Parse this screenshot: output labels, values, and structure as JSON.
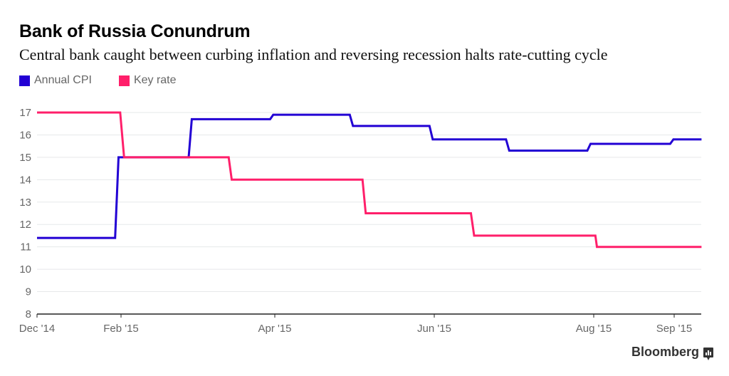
{
  "header": {
    "title": "Bank of Russia Conundrum",
    "subtitle": "Central bank caught between curbing inflation and reversing recession halts rate-cutting cycle"
  },
  "legend": [
    {
      "label": "Annual CPI",
      "color": "#2200d4"
    },
    {
      "label": "Key rate",
      "color": "#ff1f6a"
    }
  ],
  "footer": {
    "brand": "Bloomberg",
    "brand_icon": "bloomberg-chart-icon"
  },
  "chart_data": {
    "type": "line",
    "step": true,
    "title": "Bank of Russia Conundrum",
    "xlabel": "",
    "ylabel": "",
    "ylim": [
      8,
      17
    ],
    "yticks": [
      8,
      9,
      10,
      11,
      12,
      13,
      14,
      15,
      16,
      17
    ],
    "grid": true,
    "legend_position": "top-left",
    "x_ticks": [
      {
        "label": "Dec '14",
        "t": 0
      },
      {
        "label": "Feb '15",
        "t": 1
      },
      {
        "label": "Apr '15",
        "t": 2
      },
      {
        "label": "Jun '15",
        "t": 3
      },
      {
        "label": "Aug '15",
        "t": 4
      },
      {
        "label": "Sep '15",
        "t": 5
      }
    ],
    "x_end": 5.34,
    "series": [
      {
        "name": "Annual CPI",
        "color": "#2200d4",
        "points": [
          {
            "t": 0,
            "y": 11.4
          },
          {
            "t": 0.93,
            "y": 11.4
          },
          {
            "t": 0.97,
            "y": 15.0
          },
          {
            "t": 1.44,
            "y": 15.0
          },
          {
            "t": 1.46,
            "y": 16.7
          },
          {
            "t": 1.97,
            "y": 16.7
          },
          {
            "t": 1.99,
            "y": 16.9
          },
          {
            "t": 2.47,
            "y": 16.9
          },
          {
            "t": 2.49,
            "y": 16.4
          },
          {
            "t": 2.97,
            "y": 16.4
          },
          {
            "t": 2.99,
            "y": 15.8
          },
          {
            "t": 3.45,
            "y": 15.8
          },
          {
            "t": 3.47,
            "y": 15.3
          },
          {
            "t": 3.96,
            "y": 15.3
          },
          {
            "t": 3.98,
            "y": 15.6
          },
          {
            "t": 4.95,
            "y": 15.6
          },
          {
            "t": 4.99,
            "y": 15.8
          },
          {
            "t": 5.34,
            "y": 15.8
          }
        ]
      },
      {
        "name": "Key rate",
        "color": "#ff1f6a",
        "points": [
          {
            "t": 0,
            "y": 17
          },
          {
            "t": 0.99,
            "y": 17
          },
          {
            "t": 1.02,
            "y": 15
          },
          {
            "t": 1.7,
            "y": 15
          },
          {
            "t": 1.72,
            "y": 14
          },
          {
            "t": 2.55,
            "y": 14
          },
          {
            "t": 2.57,
            "y": 12.5
          },
          {
            "t": 3.23,
            "y": 12.5
          },
          {
            "t": 3.25,
            "y": 11.5
          },
          {
            "t": 4.02,
            "y": 11.5
          },
          {
            "t": 4.04,
            "y": 11
          },
          {
            "t": 5.34,
            "y": 11
          }
        ]
      }
    ]
  }
}
